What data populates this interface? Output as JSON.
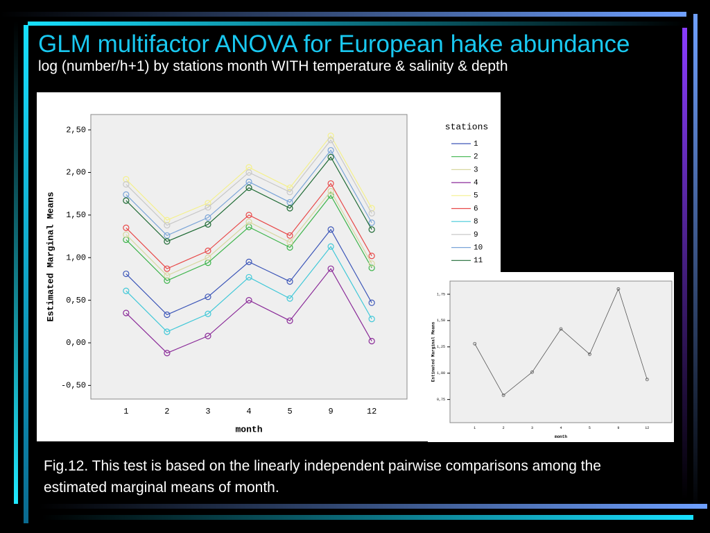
{
  "title": "GLM multifactor ANOVA for European hake abundance",
  "subtitle": "log (number/h+1) by stations month WITH temperature & salinity & depth",
  "caption": "Fig.12. This test is based on the linearly independent pairwise comparisons among the estimated marginal means of month.",
  "chart_data": [
    {
      "type": "line",
      "categories": [
        "1",
        "2",
        "3",
        "4",
        "5",
        "9",
        "12"
      ],
      "x_label": "month",
      "y_label": "Estimated Marginal Means",
      "legend_title": "stations",
      "legend": "right",
      "grid": false,
      "ylim": [
        -0.66,
        2.68
      ],
      "yticks": [
        {
          "value": -0.5,
          "label": "-0,50"
        },
        {
          "value": 0,
          "label": "0,00"
        },
        {
          "value": 0.5,
          "label": "0,50"
        },
        {
          "value": 1,
          "label": "1,00"
        },
        {
          "value": 1.5,
          "label": "1,50"
        },
        {
          "value": 2,
          "label": "2,00"
        },
        {
          "value": 2.5,
          "label": "2,50"
        }
      ],
      "series": [
        {
          "name": "1",
          "color": "#3c56b8",
          "values": [
            0.81,
            0.33,
            0.54,
            0.95,
            0.72,
            1.33,
            0.47
          ]
        },
        {
          "name": "2",
          "color": "#3cb44a",
          "values": [
            1.21,
            0.73,
            0.94,
            1.36,
            1.12,
            1.73,
            0.88
          ]
        },
        {
          "name": "3",
          "color": "#d8d8a0",
          "values": [
            1.27,
            0.79,
            1.0,
            1.42,
            1.18,
            1.78,
            0.93
          ]
        },
        {
          "name": "4",
          "color": "#8a2a98",
          "values": [
            0.35,
            -0.12,
            0.08,
            0.5,
            0.26,
            0.87,
            0.02
          ]
        },
        {
          "name": "5",
          "color": "#f4f08c",
          "values": [
            1.92,
            1.44,
            1.64,
            2.06,
            1.82,
            2.43,
            1.58
          ]
        },
        {
          "name": "6",
          "color": "#e84848",
          "values": [
            1.35,
            0.87,
            1.08,
            1.5,
            1.26,
            1.87,
            1.02
          ]
        },
        {
          "name": "8",
          "color": "#40c8d8",
          "values": [
            0.61,
            0.13,
            0.34,
            0.77,
            0.52,
            1.13,
            0.28
          ]
        },
        {
          "name": "9",
          "color": "#c8c8c8",
          "values": [
            1.86,
            1.38,
            1.59,
            2.0,
            1.77,
            2.38,
            1.52
          ]
        },
        {
          "name": "10",
          "color": "#7aa4d8",
          "values": [
            1.74,
            1.26,
            1.47,
            1.89,
            1.65,
            2.26,
            1.41
          ]
        },
        {
          "name": "11",
          "color": "#1e6a34",
          "values": [
            1.67,
            1.19,
            1.39,
            1.82,
            1.58,
            2.18,
            1.33
          ]
        }
      ]
    },
    {
      "type": "line",
      "categories": [
        "1",
        "2",
        "3",
        "4",
        "5",
        "9",
        "12"
      ],
      "x_label": "month",
      "y_label": "Estimated Marginal Means",
      "grid": false,
      "ylim": [
        0.53,
        1.875
      ],
      "yticks": [
        {
          "value": 0.75,
          "label": "0,75"
        },
        {
          "value": 1,
          "label": "1,00"
        },
        {
          "value": 1.25,
          "label": "1,25"
        },
        {
          "value": 1.5,
          "label": "1,50"
        },
        {
          "value": 1.75,
          "label": "1,75"
        }
      ],
      "series": [
        {
          "color": "#555555",
          "values": [
            1.28,
            0.79,
            1.01,
            1.42,
            1.18,
            1.8,
            0.94
          ]
        }
      ]
    }
  ]
}
